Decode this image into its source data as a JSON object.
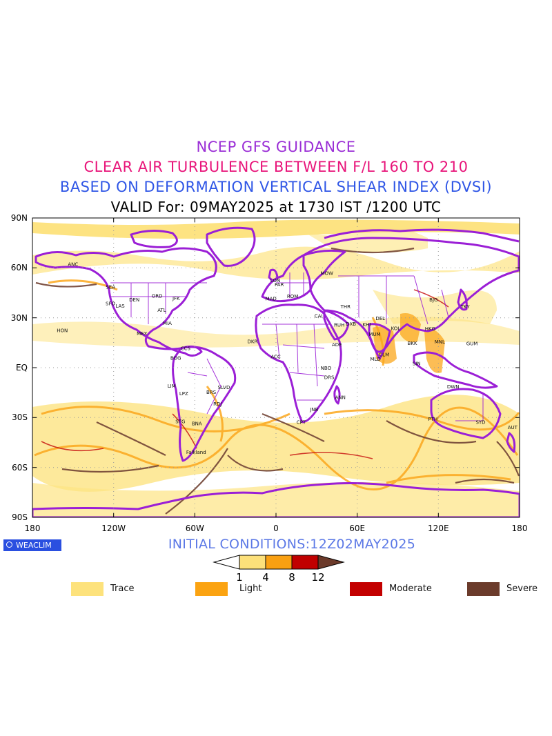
{
  "titles": {
    "line1": "NCEP GFS GUIDANCE",
    "line2": "CLEAR AIR TURBULENCE BETWEEN F/L 160 TO 210",
    "line3": "BASED ON DEFORMATION VERTICAL SHEAR INDEX (DVSI)",
    "line4": "VALID For: 09MAY2025 at 1730 IST /1200 UTC"
  },
  "axes": {
    "lat_labels": [
      "90N",
      "60N",
      "30N",
      "EQ",
      "30S",
      "60S",
      "90S"
    ],
    "lon_labels": [
      "180",
      "120W",
      "60W",
      "0",
      "60E",
      "120E",
      "180"
    ]
  },
  "logo": {
    "text": "WEACLIM"
  },
  "initial_conditions": "INITIAL CONDITIONS:12Z02MAY2025",
  "colorbar": {
    "ticks": [
      "1",
      "4",
      "8",
      "12"
    ],
    "colors": [
      "#fce07a",
      "#f9a012",
      "#c00000",
      "#6b3a2a"
    ]
  },
  "legend": [
    {
      "label": "Trace",
      "color": "#fde27c"
    },
    {
      "label": "Light",
      "color": "#fba311"
    },
    {
      "label": "Moderate",
      "color": "#c30000"
    },
    {
      "label": "Severe",
      "color": "#6b3b2b"
    }
  ],
  "colors": {
    "coast": "#9b1fd6",
    "grid": "#9a9a9a"
  },
  "stations": [
    {
      "code": "ANC",
      "lon": -150,
      "lat": 61.2
    },
    {
      "code": "SEA",
      "lon": -122.3,
      "lat": 47.5
    },
    {
      "code": "SFO",
      "lon": -122.4,
      "lat": 37.6
    },
    {
      "code": "LAS",
      "lon": -115.2,
      "lat": 36.1
    },
    {
      "code": "DEN",
      "lon": -104.7,
      "lat": 39.8
    },
    {
      "code": "ORD",
      "lon": -87.9,
      "lat": 42
    },
    {
      "code": "JFK",
      "lon": -73.8,
      "lat": 40.6
    },
    {
      "code": "ATL",
      "lon": -84.4,
      "lat": 33.6
    },
    {
      "code": "MIA",
      "lon": -80.3,
      "lat": 25.8
    },
    {
      "code": "MEX",
      "lon": -99.1,
      "lat": 19.4
    },
    {
      "code": "HON",
      "lon": -157.9,
      "lat": 21.3
    },
    {
      "code": "BOG",
      "lon": -74.1,
      "lat": 4.7
    },
    {
      "code": "CCS",
      "lon": -66.9,
      "lat": 10.5
    },
    {
      "code": "LIM",
      "lon": -77.1,
      "lat": -12
    },
    {
      "code": "LPZ",
      "lon": -68.2,
      "lat": -16.5
    },
    {
      "code": "BRS",
      "lon": -47.9,
      "lat": -15.8
    },
    {
      "code": "SLVD",
      "lon": -38.5,
      "lat": -12.9
    },
    {
      "code": "RDJ",
      "lon": -43.2,
      "lat": -22.9
    },
    {
      "code": "STG",
      "lon": -70.7,
      "lat": -33.4
    },
    {
      "code": "BNA",
      "lon": -58.5,
      "lat": -34.6
    },
    {
      "code": "Falkland",
      "lon": -59,
      "lat": -51.8
    },
    {
      "code": "LON",
      "lon": -0.5,
      "lat": 51.5
    },
    {
      "code": "PAR",
      "lon": 2.4,
      "lat": 48.9
    },
    {
      "code": "MAD",
      "lon": -3.7,
      "lat": 40.4
    },
    {
      "code": "ROM",
      "lon": 12.3,
      "lat": 41.8
    },
    {
      "code": "MOW",
      "lon": 37.6,
      "lat": 55.8
    },
    {
      "code": "CAI",
      "lon": 31.4,
      "lat": 30.1
    },
    {
      "code": "RUH",
      "lon": 46.7,
      "lat": 24.7
    },
    {
      "code": "DXB",
      "lon": 55.4,
      "lat": 25.2
    },
    {
      "code": "THR",
      "lon": 51.4,
      "lat": 35.7
    },
    {
      "code": "KHI",
      "lon": 67,
      "lat": 24.9
    },
    {
      "code": "DEL",
      "lon": 77.1,
      "lat": 28.6
    },
    {
      "code": "MUM",
      "lon": 72.9,
      "lat": 19.1
    },
    {
      "code": "KOL",
      "lon": 88.4,
      "lat": 22.6
    },
    {
      "code": "MLD",
      "lon": 73.5,
      "lat": 4.2
    },
    {
      "code": "CLM",
      "lon": 79.9,
      "lat": 6.9
    },
    {
      "code": "BKK",
      "lon": 100.7,
      "lat": 13.7
    },
    {
      "code": "SIN",
      "lon": 103.9,
      "lat": 1.4
    },
    {
      "code": "HKG",
      "lon": 113.9,
      "lat": 22.3
    },
    {
      "code": "BJG",
      "lon": 116.4,
      "lat": 39.9
    },
    {
      "code": "TKY",
      "lon": 139.8,
      "lat": 35.6
    },
    {
      "code": "MNL",
      "lon": 121,
      "lat": 14.5
    },
    {
      "code": "GUM",
      "lon": 144.8,
      "lat": 13.5
    },
    {
      "code": "ADE",
      "lon": 45,
      "lat": 12.8
    },
    {
      "code": "NBO",
      "lon": 36.9,
      "lat": -1.3
    },
    {
      "code": "DRS",
      "lon": 39.3,
      "lat": -6.8
    },
    {
      "code": "ANN",
      "lon": 47.5,
      "lat": -18.9
    },
    {
      "code": "CPT",
      "lon": 18.6,
      "lat": -33.9
    },
    {
      "code": "JNB",
      "lon": 28.2,
      "lat": -26.1
    },
    {
      "code": "ACC",
      "lon": -0.2,
      "lat": 5.6
    },
    {
      "code": "DKR",
      "lon": -17.4,
      "lat": 14.7
    },
    {
      "code": "PTH",
      "lon": 115.9,
      "lat": -31.9
    },
    {
      "code": "SYD",
      "lon": 151.2,
      "lat": -33.9
    },
    {
      "code": "DWN",
      "lon": 130.9,
      "lat": -12.4
    },
    {
      "code": "AUT",
      "lon": 174.8,
      "lat": -36.9
    }
  ]
}
